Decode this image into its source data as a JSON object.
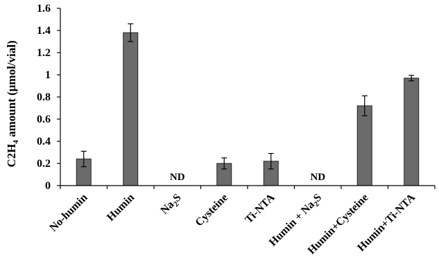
{
  "chart_data": {
    "type": "bar",
    "ylabel": "C2H4 amount (μmol/vial)",
    "ylim": [
      0,
      1.6
    ],
    "yticks": [
      "0",
      "0.2",
      "0.4",
      "0.6",
      "0.8",
      "1",
      "1.2",
      "1.4",
      "1.6"
    ],
    "categories": [
      "No-humin",
      "Humin",
      "Na2S",
      "Cysteine",
      "Ti-NTA",
      "Humin + Na2S",
      "Humin+Cysteine",
      "Humin+Ti-NTA"
    ],
    "values": [
      0.24,
      1.38,
      null,
      0.2,
      0.22,
      null,
      0.72,
      0.97
    ],
    "errors": [
      0.07,
      0.08,
      null,
      0.05,
      0.07,
      null,
      0.09,
      0.025
    ],
    "annotations": [
      "",
      "",
      "ND",
      "",
      "",
      "ND",
      "",
      ""
    ],
    "bar_color": "#6b6b6b",
    "grid": false
  }
}
